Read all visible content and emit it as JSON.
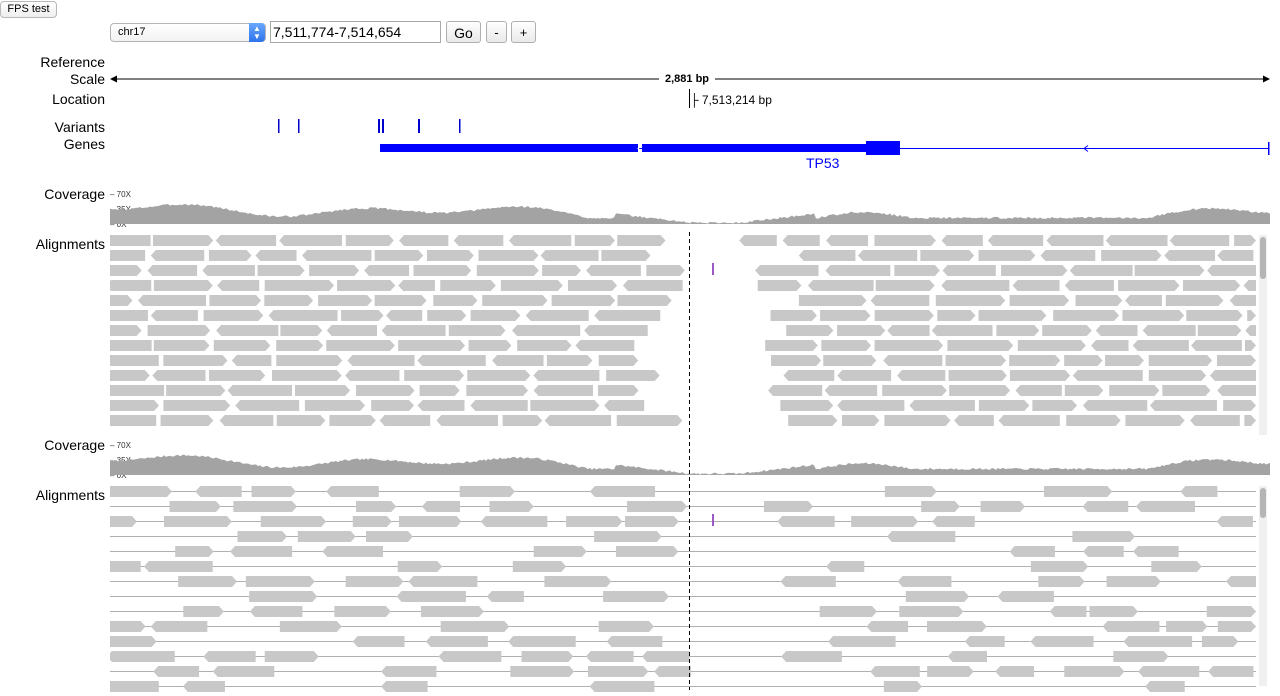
{
  "toolbar": {
    "fps_button_label": "FPS test",
    "chromosome": "chr17",
    "locus": "7,511,774-7,514,654",
    "go_label": "Go",
    "zoom_out_label": "-",
    "zoom_in_label": "+"
  },
  "tracks": {
    "reference_scale_label_1": "Reference",
    "reference_scale_label_2": "Scale",
    "scale_text": "2,881 bp",
    "location_label": "Location",
    "location_text": "├ 7,513,214 bp",
    "variants_label": "Variants",
    "genes_label": "Genes",
    "gene_name": "TP53"
  },
  "panels": [
    {
      "coverage_label": "Coverage",
      "alignments_label": "Alignments",
      "ticks": [
        "70X",
        "35X",
        "0X"
      ]
    },
    {
      "coverage_label": "Coverage",
      "alignments_label": "Alignments",
      "ticks": [
        "70X",
        "35X",
        "0X"
      ]
    }
  ],
  "colors": {
    "gene": "#0000ff",
    "variant": "#0000cc",
    "coverage": "#a3a3a3",
    "read": "#c8c8c8",
    "mismatch": "#9b59c4"
  }
}
